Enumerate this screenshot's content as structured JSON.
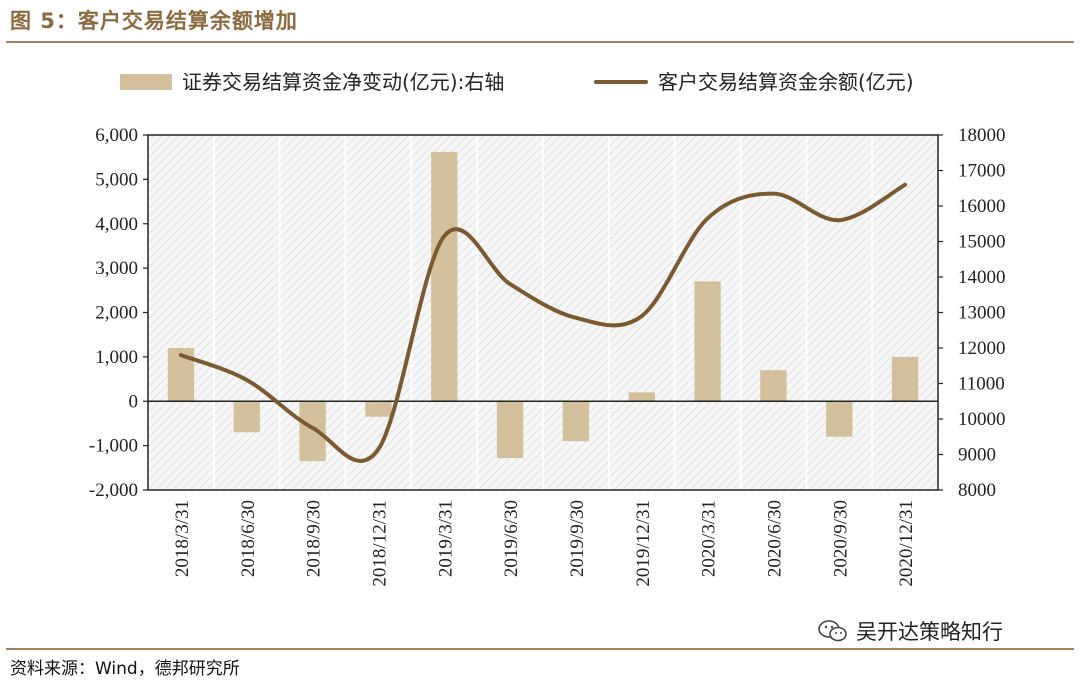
{
  "figure": {
    "title": "图 5：客户交易结算余额增加",
    "source": "资料来源：Wind，德邦研究所",
    "watermark": "吴开达策略知行",
    "watermark_icon": "wechat-icon"
  },
  "colors": {
    "bar": "#d2c19c",
    "line": "#7b5a32",
    "rule": "#a0815a",
    "title": "#8c6a3f"
  },
  "chart_data": {
    "type": "bar+line",
    "categories": [
      "2018/3/31",
      "2018/6/30",
      "2018/9/30",
      "2018/12/31",
      "2019/3/31",
      "2019/6/30",
      "2019/9/30",
      "2019/12/31",
      "2020/3/31",
      "2020/6/30",
      "2020/9/30",
      "2020/12/31"
    ],
    "series": [
      {
        "name": "证券交易结算资金净变动(亿元):右轴",
        "type": "bar",
        "axis": "left",
        "values": [
          1200,
          -700,
          -1350,
          -350,
          5620,
          -1280,
          -900,
          200,
          2700,
          700,
          -800,
          1000
        ]
      },
      {
        "name": "客户交易结算资金余额(亿元)",
        "type": "line",
        "axis": "right",
        "values": [
          11800,
          11100,
          9750,
          9150,
          15150,
          13800,
          12850,
          12900,
          15650,
          16350,
          15600,
          16600
        ]
      }
    ],
    "left_axis": {
      "ylim": [
        -2000,
        6000
      ],
      "ticks": [
        "-2,000",
        "-1,000",
        "0",
        "1,000",
        "2,000",
        "3,000",
        "4,000",
        "5,000",
        "6,000"
      ]
    },
    "right_axis": {
      "ylim": [
        8000,
        18000
      ],
      "ticks": [
        "8000",
        "9000",
        "10000",
        "11000",
        "12000",
        "13000",
        "14000",
        "15000",
        "16000",
        "17000",
        "18000"
      ]
    },
    "legend_position": "top",
    "grid": false
  }
}
